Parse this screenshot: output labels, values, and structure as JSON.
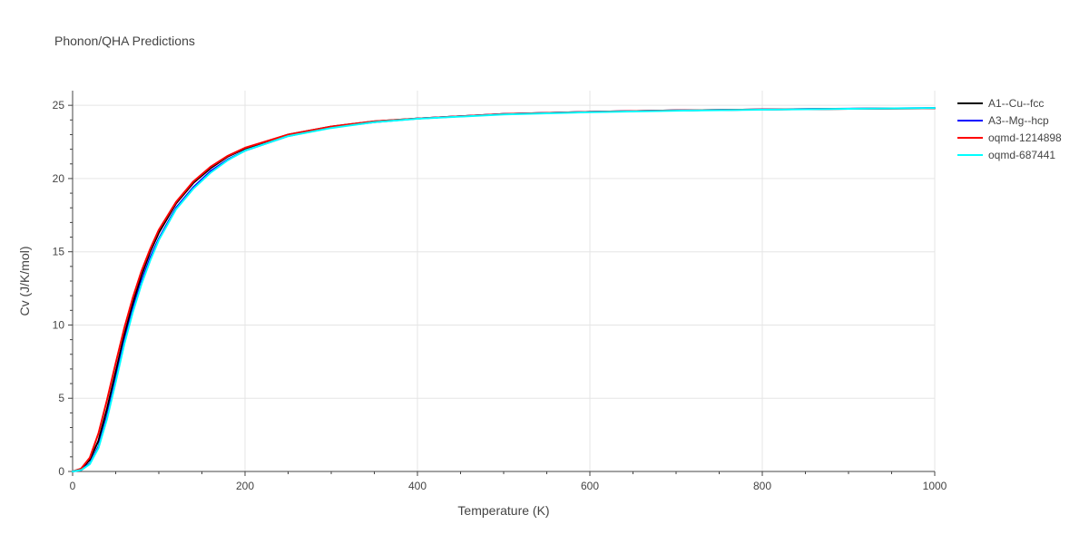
{
  "chart_data": {
    "type": "line",
    "title": "Phonon/QHA Predictions",
    "xlabel": "Temperature (K)",
    "ylabel": "Cv (J/K/mol)",
    "xlim": [
      0,
      1000
    ],
    "ylim": [
      0,
      26
    ],
    "xticks": [
      0,
      200,
      400,
      600,
      800,
      1000
    ],
    "yticks": [
      0,
      5,
      10,
      15,
      20,
      25
    ],
    "xtick_labels": [
      "0",
      "200",
      "400",
      "600",
      "800",
      "1000"
    ],
    "ytick_labels": [
      "0",
      "5",
      "10",
      "15",
      "20",
      "25"
    ],
    "grid": true,
    "legend_position": "top-right",
    "series": [
      {
        "name": "A1--Cu--fcc",
        "color": "#000000",
        "x": [
          0,
          10,
          20,
          30,
          40,
          50,
          60,
          70,
          80,
          90,
          100,
          120,
          140,
          160,
          180,
          200,
          250,
          300,
          350,
          400,
          500,
          600,
          700,
          800,
          900,
          1000
        ],
        "y": [
          0,
          0.15,
          0.8,
          2.1,
          4.3,
          6.8,
          9.3,
          11.5,
          13.4,
          15.0,
          16.3,
          18.3,
          19.7,
          20.7,
          21.5,
          22.05,
          23.0,
          23.55,
          23.9,
          24.1,
          24.4,
          24.55,
          24.65,
          24.72,
          24.76,
          24.8
        ]
      },
      {
        "name": "A3--Mg--hcp",
        "color": "#0000ff",
        "x": [
          0,
          10,
          20,
          30,
          40,
          50,
          60,
          70,
          80,
          90,
          100,
          120,
          140,
          160,
          180,
          200,
          250,
          300,
          350,
          400,
          500,
          600,
          700,
          800,
          900,
          1000
        ],
        "y": [
          0,
          0.1,
          0.55,
          1.7,
          3.8,
          6.3,
          8.9,
          11.1,
          13.0,
          14.6,
          15.9,
          18.0,
          19.4,
          20.5,
          21.3,
          21.9,
          22.9,
          23.5,
          23.85,
          24.1,
          24.4,
          24.55,
          24.65,
          24.72,
          24.77,
          24.82
        ]
      },
      {
        "name": "oqmd-1214898",
        "color": "#ff0000",
        "x": [
          0,
          10,
          20,
          30,
          40,
          50,
          60,
          70,
          80,
          90,
          100,
          120,
          140,
          160,
          180,
          200,
          250,
          300,
          350,
          400,
          500,
          600,
          700,
          800,
          900,
          1000
        ],
        "y": [
          0,
          0.2,
          0.95,
          2.6,
          4.9,
          7.4,
          9.8,
          11.9,
          13.7,
          15.2,
          16.5,
          18.4,
          19.8,
          20.8,
          21.55,
          22.1,
          23.0,
          23.55,
          23.9,
          24.1,
          24.4,
          24.55,
          24.65,
          24.72,
          24.76,
          24.8
        ]
      },
      {
        "name": "oqmd-687441",
        "color": "#00ffff",
        "x": [
          0,
          10,
          20,
          30,
          40,
          50,
          60,
          70,
          80,
          90,
          100,
          120,
          140,
          160,
          180,
          200,
          250,
          300,
          350,
          400,
          500,
          600,
          700,
          800,
          900,
          1000
        ],
        "y": [
          0,
          0.1,
          0.5,
          1.6,
          3.6,
          6.1,
          8.7,
          10.9,
          12.8,
          14.4,
          15.8,
          17.9,
          19.3,
          20.4,
          21.25,
          21.9,
          22.9,
          23.45,
          23.85,
          24.08,
          24.38,
          24.53,
          24.63,
          24.7,
          24.76,
          24.82
        ]
      }
    ]
  }
}
